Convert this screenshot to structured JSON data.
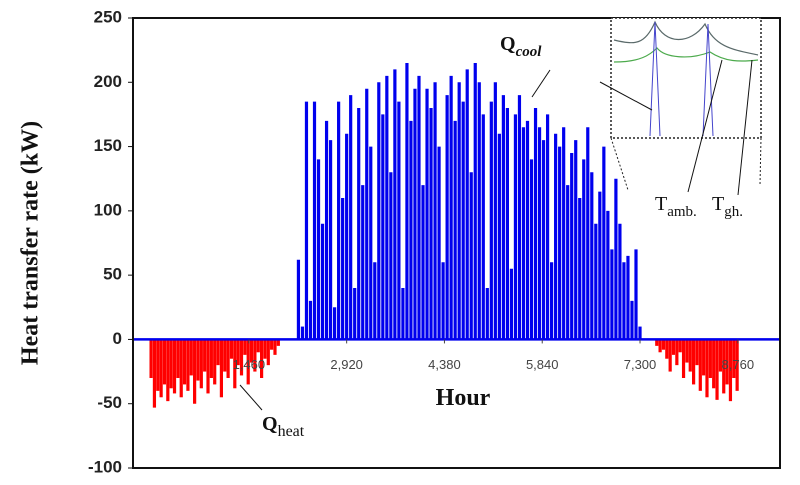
{
  "chart_data": {
    "type": "spike",
    "ylabel": "Heat transfer rate (kW)",
    "xlabel": "Hour",
    "xlim": [
      -270,
      9390
    ],
    "ylim": [
      -100,
      250
    ],
    "xticks": [
      {
        "value": 1460,
        "label": "1,460"
      },
      {
        "value": 2920,
        "label": "2,920"
      },
      {
        "value": 4380,
        "label": "4,380"
      },
      {
        "value": 5840,
        "label": "5,840"
      },
      {
        "value": 7300,
        "label": "7,300"
      },
      {
        "value": 8760,
        "label": "8,760"
      }
    ],
    "yticks": [
      -100,
      -50,
      0,
      50,
      100,
      150,
      200,
      250
    ],
    "annotations": {
      "q_cool": {
        "main": "Q",
        "sub": "cool"
      },
      "q_heat": {
        "main": "Q",
        "sub": "heat"
      },
      "t_amb": {
        "main": "T",
        "sub": "amb."
      },
      "t_gh": {
        "main": "T",
        "sub": "gh."
      }
    },
    "series": [
      {
        "name": "Q cool",
        "color": "#0000ee",
        "x": [
          2200,
          2260,
          2320,
          2380,
          2440,
          2500,
          2560,
          2620,
          2680,
          2740,
          2800,
          2860,
          2920,
          2980,
          3040,
          3100,
          3160,
          3220,
          3280,
          3340,
          3400,
          3460,
          3520,
          3580,
          3640,
          3700,
          3760,
          3820,
          3880,
          3940,
          4000,
          4060,
          4120,
          4180,
          4240,
          4300,
          4360,
          4420,
          4480,
          4540,
          4600,
          4660,
          4720,
          4780,
          4840,
          4900,
          4960,
          5020,
          5080,
          5140,
          5200,
          5260,
          5320,
          5380,
          5440,
          5500,
          5560,
          5620,
          5680,
          5740,
          5800,
          5860,
          5920,
          5980,
          6040,
          6100,
          6160,
          6220,
          6280,
          6340,
          6400,
          6460,
          6520,
          6580,
          6640,
          6700,
          6760,
          6820,
          6880,
          6940,
          7000,
          7060,
          7120,
          7180,
          7240,
          7300
        ],
        "values": [
          62,
          10,
          185,
          30,
          185,
          140,
          90,
          170,
          155,
          25,
          185,
          110,
          160,
          190,
          40,
          180,
          120,
          195,
          150,
          60,
          200,
          175,
          205,
          130,
          210,
          185,
          40,
          215,
          170,
          195,
          205,
          120,
          195,
          180,
          200,
          150,
          60,
          190,
          205,
          170,
          200,
          185,
          210,
          130,
          215,
          200,
          175,
          40,
          185,
          200,
          160,
          190,
          180,
          55,
          175,
          190,
          165,
          170,
          140,
          180,
          165,
          155,
          175,
          60,
          160,
          150,
          165,
          120,
          145,
          155,
          110,
          140,
          165,
          130,
          90,
          115,
          150,
          100,
          70,
          125,
          90,
          60,
          65,
          30,
          70,
          10
        ]
      },
      {
        "name": "Q heat",
        "color": "#ff0000",
        "x": [
          0,
          50,
          100,
          150,
          200,
          250,
          300,
          350,
          400,
          450,
          500,
          550,
          600,
          650,
          700,
          750,
          800,
          850,
          900,
          950,
          1000,
          1050,
          1100,
          1150,
          1200,
          1250,
          1300,
          1350,
          1400,
          1450,
          1500,
          1550,
          1600,
          1650,
          1700,
          1750,
          1800,
          1850,
          1900,
          7550,
          7600,
          7650,
          7700,
          7750,
          7800,
          7850,
          7900,
          7950,
          8000,
          8050,
          8100,
          8150,
          8200,
          8250,
          8300,
          8350,
          8400,
          8450,
          8500,
          8550,
          8600,
          8650,
          8700,
          8750
        ],
        "values": [
          -30,
          -53,
          -40,
          -45,
          -35,
          -48,
          -38,
          -42,
          -30,
          -45,
          -35,
          -40,
          -28,
          -50,
          -32,
          -38,
          -25,
          -42,
          -30,
          -35,
          -20,
          -45,
          -25,
          -30,
          -15,
          -38,
          -20,
          -28,
          -12,
          -35,
          -18,
          -25,
          -10,
          -30,
          -15,
          -20,
          -8,
          -12,
          -5,
          -5,
          -10,
          -8,
          -15,
          -25,
          -12,
          -20,
          -10,
          -30,
          -18,
          -25,
          -35,
          -20,
          -40,
          -28,
          -45,
          -30,
          -38,
          -47,
          -25,
          -42,
          -35,
          -48,
          -30,
          -40
        ]
      }
    ]
  }
}
